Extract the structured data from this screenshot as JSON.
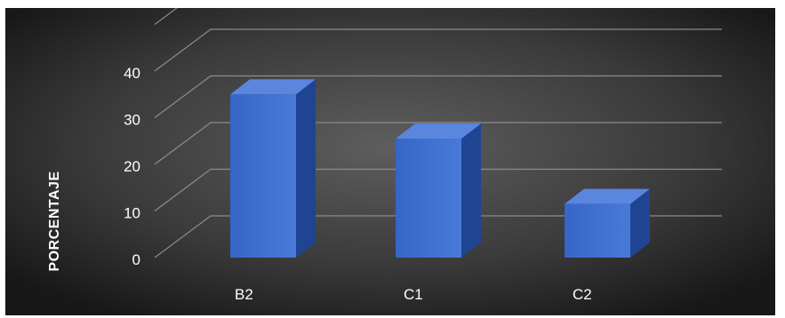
{
  "chart_data": {
    "type": "bar",
    "style": "3d-column",
    "categories": [
      "B2",
      "C1",
      "C2"
    ],
    "values": [
      35,
      25.5,
      11.5
    ],
    "title": "",
    "xlabel": "",
    "ylabel": "PORCENTAJE",
    "yticks": [
      "0",
      "10",
      "20",
      "30",
      "40"
    ],
    "ylim": [
      0,
      50
    ],
    "grid": true,
    "legend": "none"
  },
  "colors": {
    "background_center": "#5e5e5e",
    "background_edge": "#1a1a1a",
    "bar_front": "#3f6fcf",
    "bar_side": "#1f4592",
    "bar_top": "#5a86de",
    "gridline": "#8c8c8c"
  }
}
